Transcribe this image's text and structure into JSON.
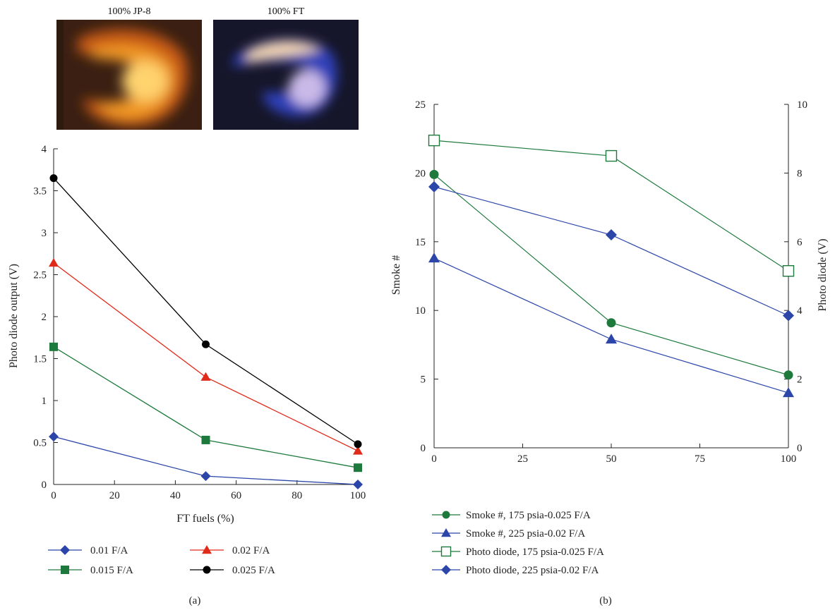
{
  "photos": [
    {
      "label": "100% JP-8",
      "palette": [
        "#3a1f12",
        "#c85a14",
        "#f29a26",
        "#ffd36e"
      ]
    },
    {
      "label": "100% FT",
      "palette": [
        "#16162a",
        "#2f3fb8",
        "#c9b9e8",
        "#f4d7b0"
      ]
    }
  ],
  "panel_labels": {
    "a": "(a)",
    "b": "(b)"
  },
  "chart_data": [
    {
      "type": "line",
      "id": "a",
      "xlabel": "FT fuels (%)",
      "ylabel": "Photo diode output (V)",
      "x": [
        0,
        50,
        100
      ],
      "xlim": [
        0,
        100
      ],
      "ylim": [
        0,
        4
      ],
      "xticks": [
        0,
        20,
        40,
        60,
        80,
        100
      ],
      "yticks": [
        0,
        0.5,
        1,
        1.5,
        2,
        2.5,
        3,
        3.5,
        4
      ],
      "series": [
        {
          "name": "0.01 F/A",
          "values": [
            0.57,
            0.1,
            0.0
          ],
          "color": "#2b45a8",
          "marker": "diamond"
        },
        {
          "name": "0.015 F/A",
          "values": [
            1.64,
            0.53,
            0.2
          ],
          "color": "#1e7a3c",
          "marker": "square"
        },
        {
          "name": "0.02 F/A",
          "values": [
            2.64,
            1.28,
            0.4
          ],
          "color": "#e02a1a",
          "marker": "triangle"
        },
        {
          "name": "0.025 F/A",
          "values": [
            3.65,
            1.67,
            0.48
          ],
          "color": "#000000",
          "marker": "circle"
        }
      ],
      "legend_order": [
        0,
        2,
        1,
        3
      ]
    },
    {
      "type": "line",
      "id": "b",
      "xlabel": "",
      "ylabel": "Smoke #",
      "y2label": "Photo diode (V)",
      "x": [
        0,
        50,
        100
      ],
      "xlim": [
        0,
        100
      ],
      "ylim": [
        0,
        25
      ],
      "y2lim": [
        0,
        10
      ],
      "xticks": [
        0,
        25,
        50,
        75,
        100
      ],
      "yticks": [
        0,
        5,
        10,
        15,
        20,
        25
      ],
      "y2ticks": [
        0,
        2,
        4,
        6,
        8,
        10
      ],
      "series": [
        {
          "name": "Smoke #, 175 psia-0.025 F/A",
          "values": [
            19.9,
            9.1,
            5.3
          ],
          "axis": "left",
          "color": "#1e7a3c",
          "marker": "circle"
        },
        {
          "name": "Smoke #, 225 psia-0.02 F/A",
          "values": [
            13.8,
            7.9,
            4.0
          ],
          "axis": "left",
          "color": "#2b45a8",
          "marker": "triangle"
        },
        {
          "name": "Photo diode, 175 psia-0.025 F/A",
          "values": [
            8.95,
            8.5,
            5.15
          ],
          "axis": "right",
          "color": "#1e7a3c",
          "marker": "open-square"
        },
        {
          "name": "Photo diode, 225 psia-0.02 F/A",
          "values": [
            7.6,
            6.2,
            3.85
          ],
          "axis": "right",
          "color": "#2b45a8",
          "marker": "diamond"
        }
      ]
    }
  ]
}
